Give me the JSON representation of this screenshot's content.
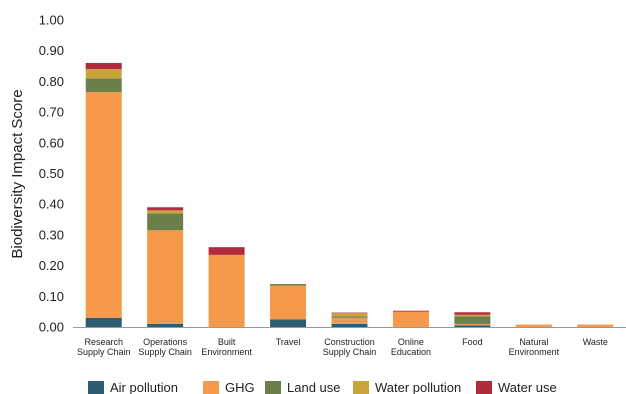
{
  "chart_data": {
    "type": "bar",
    "stacked": true,
    "title": "",
    "xlabel": "",
    "ylabel": "Biodiversity Impact Score",
    "ylim": [
      0,
      1.0
    ],
    "y_ticks": [
      "0.00",
      "0.10",
      "0.20",
      "0.30",
      "0.40",
      "0.50",
      "0.60",
      "0.70",
      "0.80",
      "0.90",
      "1.00"
    ],
    "grid": false,
    "legend_position": "bottom",
    "categories": [
      [
        "Research",
        "Supply Chain"
      ],
      [
        "Operations",
        "Supply Chain"
      ],
      [
        "Built",
        "Environment"
      ],
      [
        "Travel"
      ],
      [
        "Construction",
        "Supply Chain"
      ],
      [
        "Online",
        "Education"
      ],
      [
        "Food"
      ],
      [
        "Natural",
        "Environment"
      ],
      [
        "Waste"
      ]
    ],
    "series": [
      {
        "name": "Air pollution",
        "color": "#2a5c72",
        "values": [
          0.03,
          0.01,
          0.0,
          0.025,
          0.01,
          0.0,
          0.005,
          0.0,
          0.0
        ]
      },
      {
        "name": "GHG",
        "color": "#f7994a",
        "values": [
          0.735,
          0.305,
          0.235,
          0.11,
          0.02,
          0.05,
          0.005,
          0.008,
          0.008
        ]
      },
      {
        "name": "Land use",
        "color": "#6b7f4b",
        "values": [
          0.045,
          0.055,
          0.0,
          0.005,
          0.005,
          0.0,
          0.025,
          0.0,
          0.0
        ]
      },
      {
        "name": "Water pollution",
        "color": "#c9a43b",
        "values": [
          0.03,
          0.01,
          0.0,
          0.0,
          0.01,
          0.0,
          0.005,
          0.0,
          0.0
        ]
      },
      {
        "name": "Water use",
        "color": "#b22a3e",
        "values": [
          0.02,
          0.01,
          0.025,
          0.0,
          0.002,
          0.003,
          0.008,
          0.0,
          0.0
        ]
      }
    ]
  }
}
